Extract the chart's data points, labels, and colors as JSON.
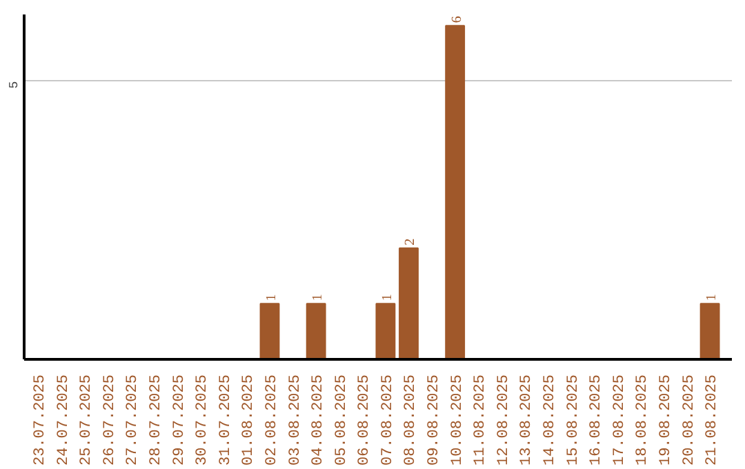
{
  "chart_data": {
    "type": "bar",
    "categories": [
      "23.07.2025",
      "24.07.2025",
      "25.07.2025",
      "26.07.2025",
      "27.07.2025",
      "28.07.2025",
      "29.07.2025",
      "30.07.2025",
      "31.07.2025",
      "01.08.2025",
      "02.08.2025",
      "03.08.2025",
      "04.08.2025",
      "05.08.2025",
      "06.08.2025",
      "07.08.2025",
      "08.08.2025",
      "09.08.2025",
      "10.08.2025",
      "11.08.2025",
      "12.08.2025",
      "13.08.2025",
      "14.08.2025",
      "15.08.2025",
      "16.08.2025",
      "17.08.2025",
      "18.08.2025",
      "19.08.2025",
      "20.08.2025",
      "21.08.2025"
    ],
    "values": [
      0,
      0,
      0,
      0,
      0,
      0,
      0,
      0,
      0,
      0,
      1,
      0,
      1,
      0,
      0,
      1,
      2,
      0,
      6,
      0,
      0,
      0,
      0,
      0,
      0,
      0,
      0,
      0,
      0,
      1
    ],
    "value_labels": [
      null,
      null,
      null,
      null,
      null,
      null,
      null,
      null,
      null,
      null,
      "1",
      null,
      "1",
      null,
      null,
      "1",
      "2",
      null,
      "6",
      null,
      null,
      null,
      null,
      null,
      null,
      null,
      null,
      null,
      null,
      "1"
    ],
    "color": "#a0582a",
    "ylim": [
      0,
      6.2
    ],
    "yticks": [
      5
    ],
    "grid": "y"
  }
}
